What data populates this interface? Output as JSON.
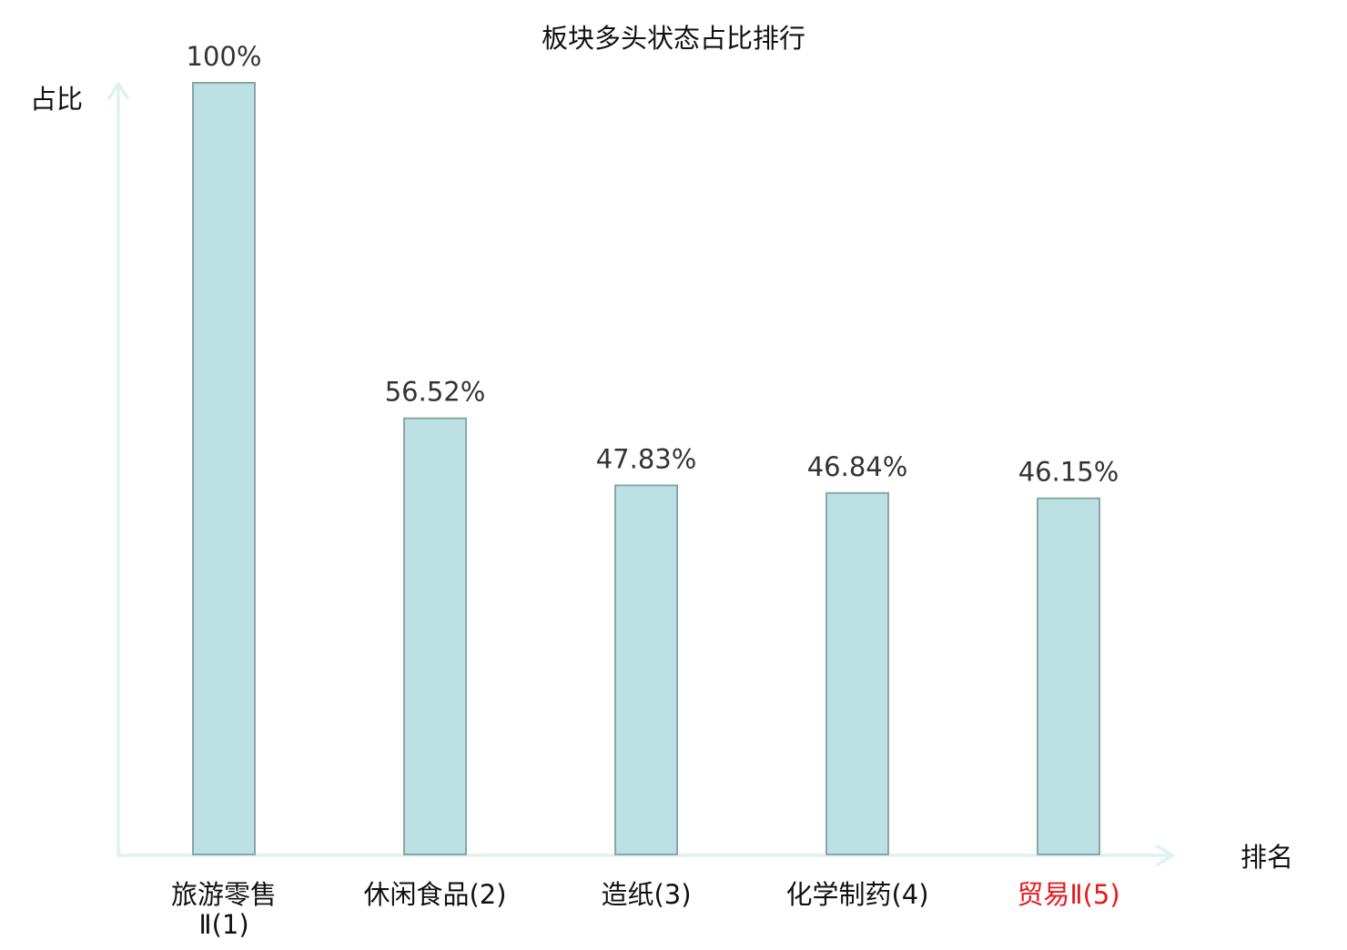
{
  "chart_data": {
    "type": "bar",
    "title": "板块多头状态占比排行",
    "ylabel": "占比",
    "xlabel": "排名",
    "categories": [
      "旅游零售Ⅱ(1)",
      "休闲食品(2)",
      "造纸(3)",
      "化学制药(4)",
      "贸易Ⅱ(5)"
    ],
    "category_lines": [
      [
        "旅游零售",
        "Ⅱ(1)"
      ],
      [
        "休闲食品(2)"
      ],
      [
        "造纸(3)"
      ],
      [
        "化学制药(4)"
      ],
      [
        "贸易Ⅱ(5)"
      ]
    ],
    "values": [
      100,
      56.52,
      47.83,
      46.84,
      46.15
    ],
    "value_labels": [
      "100%",
      "56.52%",
      "47.83%",
      "46.84%",
      "46.15%"
    ],
    "ylim": [
      0,
      100
    ],
    "highlight_index": 4,
    "grid": false,
    "legend": "none"
  },
  "colors": {
    "bar_fill": "#bde0e2",
    "bar_stroke": "#8aa6a8",
    "axis": "#e0f2f0",
    "text": "#111111",
    "value_text": "#333333",
    "highlight": "#e8191e"
  }
}
